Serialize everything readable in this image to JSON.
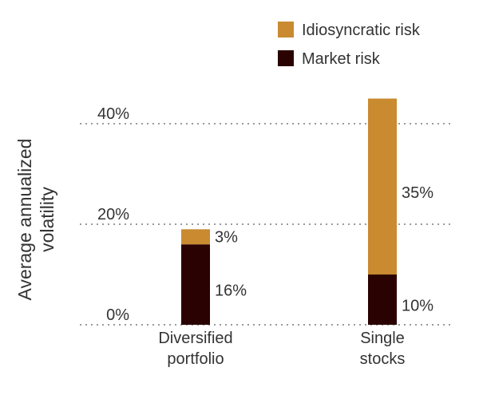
{
  "chart_data": {
    "type": "bar",
    "stacked": true,
    "categories": [
      [
        "Diversified",
        "portfolio"
      ],
      [
        "Single",
        "stocks"
      ]
    ],
    "series": [
      {
        "name": "Market risk",
        "values": [
          16,
          10
        ],
        "color": "#2a0202",
        "labels": [
          "16%",
          "10%"
        ]
      },
      {
        "name": "Idiosyncratic risk",
        "values": [
          3,
          35
        ],
        "color": "#c98a30",
        "labels": [
          "3%",
          "35%"
        ]
      }
    ],
    "yticks": [
      {
        "value": 0,
        "label": "0%"
      },
      {
        "value": 20,
        "label": "20%"
      },
      {
        "value": 40,
        "label": "40%"
      }
    ],
    "ylim": [
      0,
      45
    ],
    "ylabel": [
      "Average annualized",
      "volatility"
    ],
    "xlabel": "",
    "title": "",
    "grid": "dotted horizontal",
    "legend": {
      "placement": "top-right",
      "order": [
        "Idiosyncratic risk",
        "Market risk"
      ]
    }
  }
}
